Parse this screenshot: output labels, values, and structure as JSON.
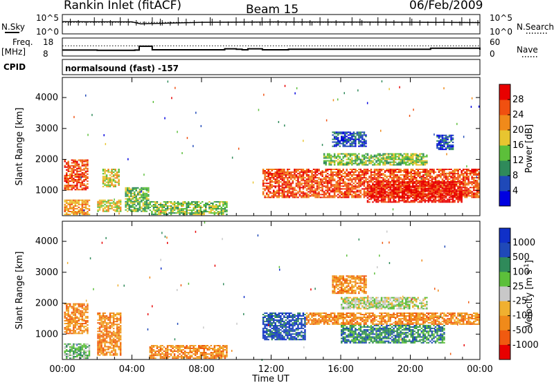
{
  "header": {
    "station": "Rankin Inlet (fitACF)",
    "beam": "Beam 15",
    "date": "06/Feb/2009"
  },
  "top_panels": {
    "nsky_label": "N.Sky",
    "nsky_ticks": [
      "10^5",
      "10^0"
    ],
    "nsearch_label": "N.Search",
    "nsearch_ticks": [
      "10^5",
      "10^0"
    ],
    "freq_label": "Freq.",
    "freq_unit": "[MHz]",
    "freq_ticks": [
      "18",
      "8"
    ],
    "nave_label": "Nave",
    "nave_ticks": [
      "60",
      "0"
    ],
    "cpid_label": "CPID",
    "cpid_value": "normalsound (fast) -157"
  },
  "colors": {
    "power_scale": [
      "#0000e0",
      "#1f49b8",
      "#2f8a5a",
      "#5cbf3a",
      "#e8c530",
      "#f08a1a",
      "#f05010",
      "#e80000"
    ],
    "velocity_scale": [
      "#e80000",
      "#f05a10",
      "#f08a1a",
      "#f0b030",
      "#c8c8c8",
      "#5cbf3a",
      "#2f8a5a",
      "#1f49b8",
      "#1030c8"
    ]
  },
  "chart_data": [
    {
      "type": "line",
      "title": "",
      "series": [
        {
          "name": "N.Sky",
          "x": [
            "00:00",
            "04:00",
            "04:30",
            "08:00",
            "12:00",
            "16:00",
            "20:00",
            "24:00"
          ],
          "values": [
            1800,
            1600,
            400,
            1200,
            1500,
            1400,
            1300,
            1000
          ]
        },
        {
          "name": "N.Search",
          "x": [
            "00:00",
            "12:00",
            "24:00"
          ],
          "values": [
            1200,
            1200,
            1200
          ]
        }
      ]
    },
    {
      "type": "line",
      "series": [
        {
          "name": "Freq.",
          "x": [
            "00:00",
            "01:00",
            "02:00",
            "04:10",
            "04:25",
            "05:10",
            "09:20",
            "10:00",
            "10:20",
            "10:40",
            "11:30",
            "13:00",
            "20:20",
            "21:10",
            "24:00"
          ],
          "values": [
            11,
            11,
            10.8,
            11,
            13.5,
            11.2,
            11.8,
            11.5,
            11.2,
            11.8,
            11.2,
            11.5,
            11.5,
            12.2,
            11.2
          ]
        },
        {
          "name": "Nave",
          "x": [
            "00:00",
            "24:00"
          ],
          "values": [
            34,
            34
          ]
        }
      ]
    },
    {
      "type": "heatmap",
      "title": "Power",
      "xlabel": "",
      "ylabel": "Slant Range [km]",
      "x_ticks": [
        "00:00",
        "04:00",
        "08:00",
        "12:00",
        "16:00",
        "20:00",
        "00:00"
      ],
      "y_ticks": [
        1000,
        2000,
        3000,
        4000
      ],
      "ylim": [
        180,
        4650
      ],
      "colorbar": {
        "label": "Power [dB]",
        "ticks": [
          4,
          8,
          12,
          16,
          20,
          24,
          28
        ]
      },
      "regions": [
        {
          "t": [
            0.1,
            1.5
          ],
          "r": [
            1000,
            2000
          ],
          "level": 6
        },
        {
          "t": [
            0.1,
            1.6
          ],
          "r": [
            200,
            700
          ],
          "level": 5
        },
        {
          "t": [
            2.0,
            3.4
          ],
          "r": [
            300,
            700
          ],
          "level": 4
        },
        {
          "t": [
            2.3,
            3.3
          ],
          "r": [
            1100,
            1700
          ],
          "level": 4
        },
        {
          "t": [
            3.6,
            5.0
          ],
          "r": [
            300,
            1100
          ],
          "level": 3
        },
        {
          "t": [
            5.0,
            9.5
          ],
          "r": [
            200,
            650
          ],
          "level": 3
        },
        {
          "t": [
            11.5,
            24.0
          ],
          "r": [
            750,
            1700
          ],
          "level": 6
        },
        {
          "t": [
            17.5,
            23.0
          ],
          "r": [
            600,
            1300
          ],
          "level": 7
        },
        {
          "t": [
            15.0,
            21.0
          ],
          "r": [
            1800,
            2200
          ],
          "level": 3
        },
        {
          "t": [
            15.5,
            17.5
          ],
          "r": [
            2400,
            2900
          ],
          "level": 1
        },
        {
          "t": [
            21.5,
            22.5
          ],
          "r": [
            2300,
            2800
          ],
          "level": 1
        }
      ]
    },
    {
      "type": "heatmap",
      "title": "Velocity",
      "xlabel": "Time UT",
      "ylabel": "Slant Range [km]",
      "x_ticks": [
        "00:00",
        "04:00",
        "08:00",
        "12:00",
        "16:00",
        "20:00",
        "00:00"
      ],
      "y_ticks": [
        1000,
        2000,
        3000,
        4000
      ],
      "ylim": [
        180,
        4650
      ],
      "colorbar": {
        "label": "Velocity [m s-1]",
        "ticks": [
          1000,
          500,
          100,
          25,
          -25,
          -100,
          -500,
          -1000
        ]
      },
      "regions": [
        {
          "t": [
            0.1,
            1.5
          ],
          "r": [
            1000,
            2000
          ],
          "level": 2
        },
        {
          "t": [
            0.1,
            1.6
          ],
          "r": [
            200,
            700
          ],
          "level": 5
        },
        {
          "t": [
            2.0,
            3.4
          ],
          "r": [
            300,
            1700
          ],
          "level": 2
        },
        {
          "t": [
            5.0,
            9.5
          ],
          "r": [
            200,
            650
          ],
          "level": 2
        },
        {
          "t": [
            11.5,
            14.0
          ],
          "r": [
            800,
            1700
          ],
          "level": 7
        },
        {
          "t": [
            14.0,
            24.0
          ],
          "r": [
            1300,
            1700
          ],
          "level": 2
        },
        {
          "t": [
            16.0,
            22.0
          ],
          "r": [
            700,
            1300
          ],
          "level": 6
        },
        {
          "t": [
            16.0,
            21.0
          ],
          "r": [
            1800,
            2200
          ],
          "level": 4
        },
        {
          "t": [
            15.5,
            17.5
          ],
          "r": [
            2300,
            2900
          ],
          "level": 2
        }
      ]
    }
  ]
}
